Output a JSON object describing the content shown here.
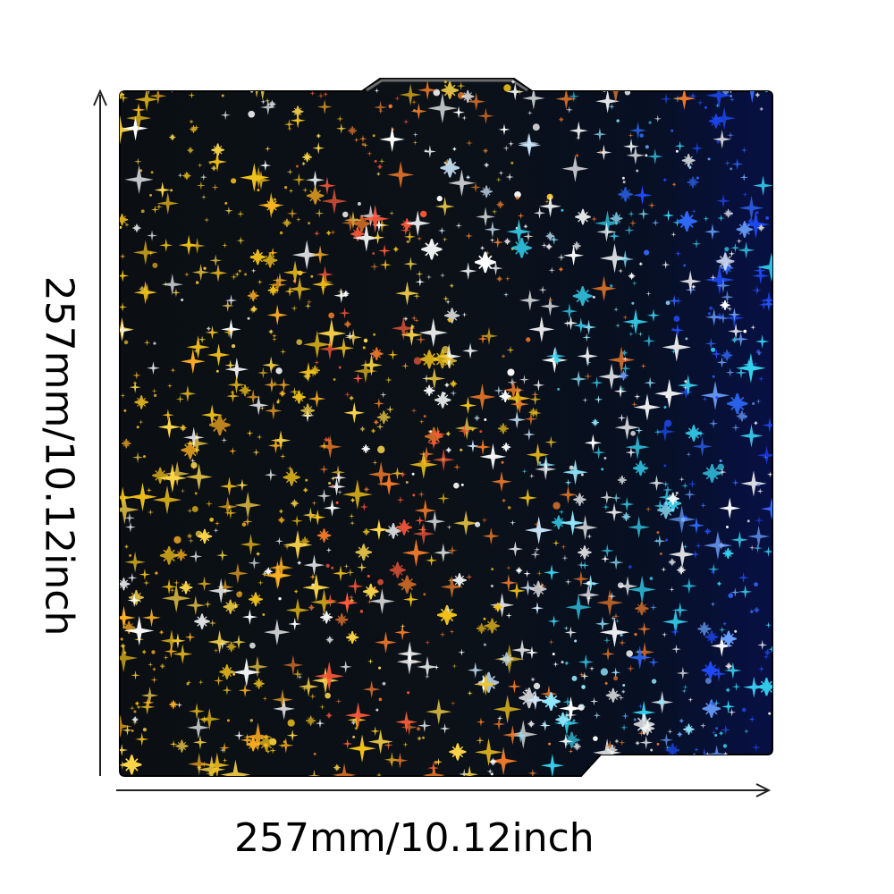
{
  "product": {
    "description_hidden": "",
    "colors": {
      "background": "#ffffff",
      "plate_base": "#0b1118",
      "gold": "#f3c21a",
      "orange": "#f07a2a",
      "white": "#ffffff",
      "cyan": "#35d3f2",
      "blue": "#1f4cff",
      "arrow": "#222222"
    }
  },
  "dimensions": {
    "width_label": "257mm/10.12inch",
    "height_label": "257mm/10.12inch"
  }
}
